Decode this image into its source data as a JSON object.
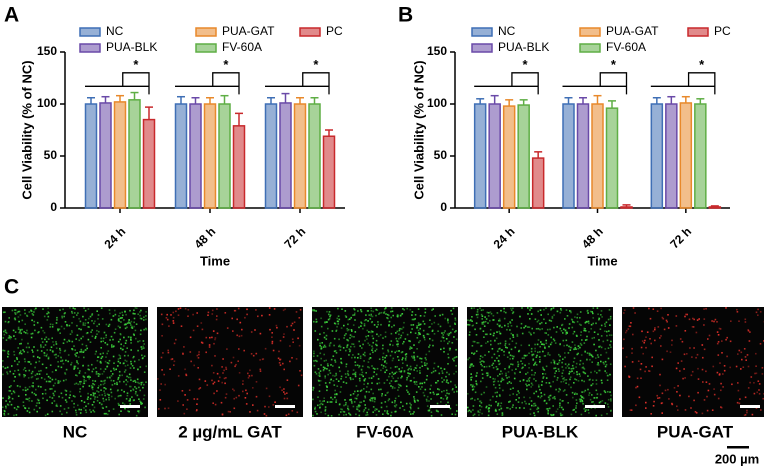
{
  "chart_data": [
    {
      "type": "bar",
      "panel_label": "A",
      "x_label": "Time",
      "y_label": "Cell Viability (% of NC)",
      "categories": [
        "24 h",
        "48 h",
        "72 h"
      ],
      "ylim": [
        0,
        150
      ],
      "yticks": [
        0,
        50,
        100,
        150
      ],
      "series": [
        {
          "name": "NC",
          "color": "#3f6fb5",
          "values": [
            100,
            100,
            100
          ],
          "errors": [
            6,
            7,
            6
          ]
        },
        {
          "name": "PUA-BLK",
          "color": "#6a4aa8",
          "values": [
            101,
            100,
            101
          ],
          "errors": [
            6,
            6,
            9
          ]
        },
        {
          "name": "PUA-GAT",
          "color": "#e8892b",
          "values": [
            102,
            100,
            100
          ],
          "errors": [
            6,
            6,
            6
          ]
        },
        {
          "name": "FV-60A",
          "color": "#5fae45",
          "values": [
            104,
            100,
            100
          ],
          "errors": [
            7,
            8,
            6
          ]
        },
        {
          "name": "PC",
          "color": "#c8292c",
          "values": [
            85,
            79,
            69
          ],
          "errors": [
            12,
            12,
            6
          ]
        }
      ],
      "significance": [
        "*",
        "*",
        "*"
      ]
    },
    {
      "type": "bar",
      "panel_label": "B",
      "x_label": "Time",
      "y_label": "Cell Viability (% of NC)",
      "categories": [
        "24 h",
        "48 h",
        "72 h"
      ],
      "ylim": [
        0,
        150
      ],
      "yticks": [
        0,
        50,
        100,
        150
      ],
      "series": [
        {
          "name": "NC",
          "color": "#3f6fb5",
          "values": [
            100,
            100,
            100
          ],
          "errors": [
            5,
            6,
            6
          ]
        },
        {
          "name": "PUA-BLK",
          "color": "#6a4aa8",
          "values": [
            100,
            100,
            100
          ],
          "errors": [
            8,
            6,
            7
          ]
        },
        {
          "name": "PUA-GAT",
          "color": "#e8892b",
          "values": [
            98,
            100,
            101
          ],
          "errors": [
            6,
            8,
            6
          ]
        },
        {
          "name": "FV-60A",
          "color": "#5fae45",
          "values": [
            99,
            96,
            100
          ],
          "errors": [
            5,
            7,
            5
          ]
        },
        {
          "name": "PC",
          "color": "#c8292c",
          "values": [
            48,
            1,
            1
          ],
          "errors": [
            6,
            2,
            1
          ]
        }
      ],
      "significance": [
        "*",
        "*",
        "*"
      ]
    }
  ],
  "panel_c": {
    "panel_label": "C",
    "scale_bar": "200 µm",
    "images": [
      {
        "label": "NC",
        "dot_color": "#3cd23c"
      },
      {
        "label": "2 µg/mL GAT",
        "dot_color": "#e0302a"
      },
      {
        "label": "FV-60A",
        "dot_color": "#3cd23c"
      },
      {
        "label": "PUA-BLK",
        "dot_color": "#3cd23c"
      },
      {
        "label": "PUA-GAT",
        "dot_color": "#e0302a"
      }
    ]
  }
}
